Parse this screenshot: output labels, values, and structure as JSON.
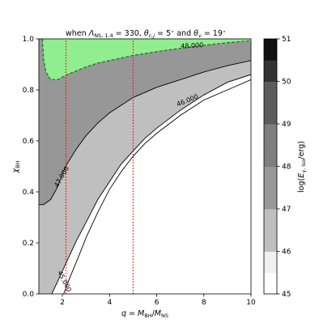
{
  "chart_data": {
    "type": "contour",
    "title": "when Λₙₛ,₁.₄ = 330, θᶜ,ⱼ = 5° and θᵥ = 19°",
    "title_parts": {
      "prefix": "when ",
      "lambda_symbol": "Λ",
      "lambda_sub": "NS, 1.4",
      "lambda_value": " = 330, ",
      "theta_c_symbol": "θ",
      "theta_c_sub": "c,j",
      "theta_c_value": " = 5",
      "degree": "∘",
      "joiner": " and ",
      "theta_v_symbol": "θ",
      "theta_v_sub": "v",
      "theta_v_value": " = 19"
    },
    "xlabel": "q = M_BH/M_NS",
    "xlabel_parts": {
      "q": "q",
      "eq": " = ",
      "M1": "M",
      "sub1": "BH",
      "slash": "/",
      "M2": "M",
      "sub2": "NS"
    },
    "ylabel": "χ_BH",
    "ylabel_parts": {
      "chi": "χ",
      "sub": "BH"
    },
    "colorbar_label": "log(E_γ,iso/erg)",
    "colorbar_label_parts": {
      "prefix": "log(",
      "E": "E",
      "sub": "γ, iso",
      "suffix": "/erg)"
    },
    "xlim": [
      1,
      10
    ],
    "ylim": [
      0.0,
      1.0
    ],
    "xticks": [
      "2",
      "4",
      "6",
      "8",
      "10"
    ],
    "xtick_values": [
      2,
      4,
      6,
      8,
      10
    ],
    "yticks": [
      "0.0",
      "0.2",
      "0.4",
      "0.6",
      "0.8",
      "1.0"
    ],
    "ytick_values": [
      0.0,
      0.2,
      0.4,
      0.6,
      0.8,
      1.0
    ],
    "colorbar_ticks": [
      "45",
      "46",
      "47",
      "48",
      "49",
      "50",
      "51"
    ],
    "colorbar_tick_values": [
      45,
      46,
      47,
      48,
      49,
      50,
      51
    ],
    "levels": [
      {
        "range": [
          45.0,
          45.5
        ],
        "color": "#ffffff"
      },
      {
        "range": [
          45.5,
          46.0
        ],
        "color": "#f0f0f0"
      },
      {
        "range": [
          46.0,
          46.5
        ],
        "color": "#bfbfbf"
      },
      {
        "range": [
          46.5,
          47.0
        ],
        "color": "#bfbfbf"
      },
      {
        "range": [
          47.0,
          47.5
        ],
        "color": "#979797"
      },
      {
        "range": [
          47.5,
          48.0
        ],
        "color": "#979797"
      },
      {
        "range": [
          48.0,
          48.5
        ],
        "color": "#7f7f7f"
      },
      {
        "range": [
          48.5,
          49.0
        ],
        "color": "#7f7f7f"
      },
      {
        "range": [
          49.0,
          49.5
        ],
        "color": "#5c5c5c"
      },
      {
        "range": [
          49.5,
          50.0
        ],
        "color": "#5c5c5c"
      },
      {
        "range": [
          50.0,
          50.5
        ],
        "color": "#333333"
      },
      {
        "range": [
          50.5,
          51.0
        ],
        "color": "#111111"
      }
    ],
    "contours": [
      {
        "label": "45.000",
        "points": [
          [
            1.55,
            0.0
          ],
          [
            1.8,
            0.05
          ],
          [
            2.2,
            0.13
          ],
          [
            2.6,
            0.21
          ],
          [
            3.0,
            0.28
          ],
          [
            3.5,
            0.37
          ],
          [
            4.0,
            0.44
          ],
          [
            4.5,
            0.51
          ],
          [
            5.0,
            0.56
          ],
          [
            5.5,
            0.61
          ],
          [
            6.0,
            0.65
          ],
          [
            7.0,
            0.72
          ],
          [
            8.0,
            0.78
          ],
          [
            9.0,
            0.83
          ],
          [
            10.0,
            0.86
          ]
        ]
      },
      {
        "label": "46.000",
        "points": [
          [
            2.05,
            0.0
          ],
          [
            2.3,
            0.06
          ],
          [
            2.7,
            0.15
          ],
          [
            3.0,
            0.22
          ],
          [
            3.5,
            0.32
          ],
          [
            4.0,
            0.41
          ],
          [
            4.5,
            0.48
          ],
          [
            5.0,
            0.54
          ],
          [
            5.5,
            0.59
          ],
          [
            6.0,
            0.63
          ],
          [
            7.0,
            0.7
          ],
          [
            8.0,
            0.76
          ],
          [
            9.0,
            0.8
          ],
          [
            10.0,
            0.84
          ]
        ]
      },
      {
        "label": "47.000",
        "points": [
          [
            1.0,
            0.35
          ],
          [
            1.2,
            0.35
          ],
          [
            1.5,
            0.37
          ],
          [
            1.8,
            0.42
          ],
          [
            2.0,
            0.47
          ],
          [
            2.2,
            0.51
          ],
          [
            2.6,
            0.57
          ],
          [
            3.0,
            0.62
          ],
          [
            3.5,
            0.67
          ],
          [
            4.0,
            0.71
          ],
          [
            5.0,
            0.77
          ],
          [
            6.0,
            0.81
          ],
          [
            7.0,
            0.84
          ],
          [
            8.0,
            0.87
          ],
          [
            9.0,
            0.895
          ],
          [
            10.0,
            0.915
          ]
        ]
      },
      {
        "label": "48.000",
        "points": [
          [
            1.15,
            1.0
          ],
          [
            1.2,
            0.92
          ],
          [
            1.3,
            0.87
          ],
          [
            1.5,
            0.84
          ],
          [
            1.8,
            0.84
          ],
          [
            2.2,
            0.86
          ],
          [
            2.6,
            0.875
          ],
          [
            3.0,
            0.89
          ],
          [
            3.5,
            0.905
          ],
          [
            4.0,
            0.915
          ],
          [
            5.0,
            0.935
          ],
          [
            6.0,
            0.95
          ],
          [
            7.0,
            0.963
          ],
          [
            8.0,
            0.975
          ],
          [
            9.0,
            0.985
          ],
          [
            10.0,
            0.993
          ]
        ]
      }
    ],
    "regions": [
      {
        "name": "green",
        "color": "#90ee90"
      },
      {
        "name": "contour-47-to-48",
        "color": "#979797"
      },
      {
        "name": "contour-46-to-47",
        "color": "#bfbfbf"
      },
      {
        "name": "contour-45-to-46",
        "color": "#f0f0f0"
      },
      {
        "name": "below-45",
        "color": "#ffffff"
      }
    ],
    "vertical_lines": [
      {
        "x": 2.15,
        "color": "#ff0000",
        "style": "dotted"
      },
      {
        "x": 5.0,
        "color": "#ff0000",
        "style": "dotted"
      }
    ]
  }
}
